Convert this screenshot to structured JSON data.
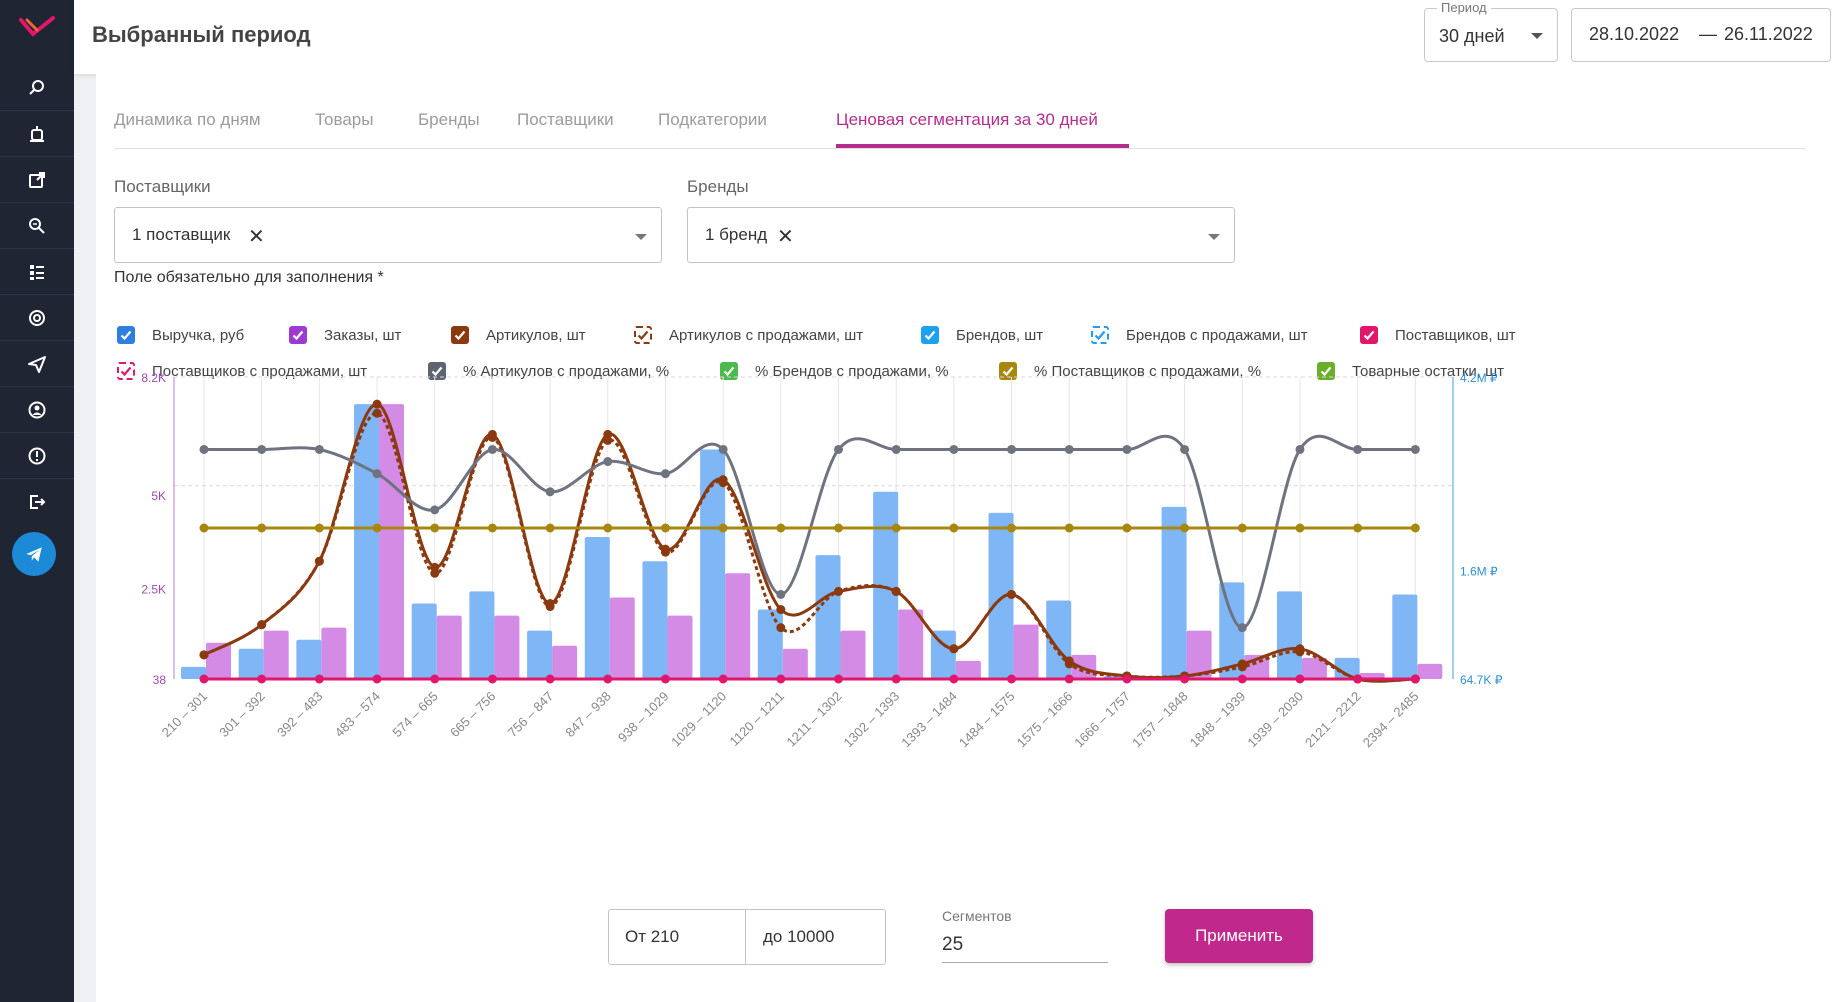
{
  "header": {
    "title": "Выбранный период",
    "period_label": "Период",
    "period_value": "30 дней",
    "date_from": "28.10.2022",
    "date_sep": "—",
    "date_to": "26.11.2022"
  },
  "sidebar": {
    "icons": [
      "logo-icon",
      "search-list-icon",
      "alarm-icon",
      "external-link-icon",
      "zoom-icon",
      "list-icon",
      "chrome-icon",
      "send-icon",
      "account-icon",
      "info-icon",
      "logout-icon",
      "telegram-icon"
    ]
  },
  "tabs": [
    {
      "label": "Динамика по дням",
      "active": false
    },
    {
      "label": "Товары",
      "active": false
    },
    {
      "label": "Бренды",
      "active": false
    },
    {
      "label": "Поставщики",
      "active": false
    },
    {
      "label": "Подкатегории",
      "active": false
    },
    {
      "label": "Ценовая сегментация за 30 дней",
      "active": true
    }
  ],
  "filters": {
    "suppliers_label": "Поставщики",
    "suppliers_value": "1 поставщик",
    "brands_label": "Бренды",
    "brands_value": "1 бренд",
    "required_note": "Поле обязательно для заполнения *",
    "clear_symbol": "✕"
  },
  "legend": [
    {
      "label": "Выручка, руб",
      "color": "#2f7fe0",
      "style": "solid",
      "checked": true
    },
    {
      "label": "Заказы, шт",
      "color": "#9b3bd1",
      "style": "solid",
      "checked": true
    },
    {
      "label": "Артикулов, шт",
      "color": "#8b3a10",
      "style": "solid",
      "checked": true
    },
    {
      "label": "Артикулов с продажами, шт",
      "color": "#8b3a10",
      "style": "dashed",
      "checked": true
    },
    {
      "label": "Брендов, шт",
      "color": "#1ea0f0",
      "style": "solid",
      "checked": true
    },
    {
      "label": "Брендов с продажами, шт",
      "color": "#1ea0f0",
      "style": "dashed",
      "checked": true
    },
    {
      "label": "Поставщиков, шт",
      "color": "#e0176b",
      "style": "solid",
      "checked": true
    },
    {
      "label": "Поставщиков с продажами, шт",
      "color": "#e0176b",
      "style": "dashed",
      "checked": true
    },
    {
      "label": "% Артикулов с продажами, %",
      "color": "#5e6470",
      "style": "solid",
      "checked": true
    },
    {
      "label": "% Брендов с продажами, %",
      "color": "#4cbb4c",
      "style": "solid",
      "checked": true
    },
    {
      "label": "% Поставщиков с продажами, %",
      "color": "#a8870f",
      "style": "solid",
      "checked": true
    },
    {
      "label": "Товарные остатки, шт",
      "color": "#6aaf2a",
      "style": "solid",
      "checked": true
    }
  ],
  "chart_data": {
    "type": "bar",
    "categories": [
      "210 – 301",
      "301 – 392",
      "392 – 483",
      "483 – 574",
      "574 – 665",
      "665 – 756",
      "756 – 847",
      "847 – 938",
      "938 – 1029",
      "1029 – 1120",
      "1120 – 1211",
      "1211 – 1302",
      "1302 – 1393",
      "1393 – 1484",
      "1484 – 1575",
      "1575 – 1666",
      "1666 – 1757",
      "1757 – 1848",
      "1848 – 1939",
      "1939 – 2030",
      "2121 – 2212",
      "2394 – 2485"
    ],
    "left_ticks": [
      "8.2K",
      "5K",
      "2.5K",
      "38"
    ],
    "right_ticks": [
      "4.2M ₽",
      "1.6M ₽",
      "64.7K ₽"
    ],
    "left_ylim": [
      38,
      8200
    ],
    "series": [
      {
        "name": "Выручка, руб",
        "kind": "bar",
        "color": "#7fb6f5",
        "values": [
          0.04,
          0.1,
          0.13,
          0.91,
          0.25,
          0.29,
          0.16,
          0.47,
          0.39,
          0.76,
          0.23,
          0.41,
          0.62,
          0.16,
          0.55,
          0.26,
          0.01,
          0.57,
          0.32,
          0.29,
          0.07,
          0.28
        ]
      },
      {
        "name": "Заказы, шт",
        "kind": "bar",
        "color": "#d48be6",
        "values": [
          0.12,
          0.16,
          0.17,
          0.91,
          0.21,
          0.21,
          0.11,
          0.27,
          0.21,
          0.35,
          0.1,
          0.16,
          0.23,
          0.06,
          0.18,
          0.08,
          0.01,
          0.16,
          0.08,
          0.07,
          0.02,
          0.05
        ]
      },
      {
        "name": "Артикулов, шт",
        "kind": "line",
        "color": "#8b3a10",
        "values": [
          0.08,
          0.18,
          0.39,
          0.91,
          0.37,
          0.81,
          0.25,
          0.81,
          0.43,
          0.66,
          0.23,
          0.29,
          0.29,
          0.1,
          0.28,
          0.06,
          0.01,
          0.01,
          0.05,
          0.1,
          0.0,
          0.0
        ]
      },
      {
        "name": "Артикулов с продажами, шт",
        "kind": "line-dashed",
        "color": "#8b3a10",
        "values": [
          0.08,
          0.18,
          0.39,
          0.88,
          0.35,
          0.8,
          0.24,
          0.79,
          0.42,
          0.65,
          0.17,
          0.29,
          0.29,
          0.1,
          0.28,
          0.05,
          0.01,
          0.01,
          0.04,
          0.09,
          0.0,
          0.0
        ]
      },
      {
        "name": "% Артикулов с продажами, %",
        "kind": "line",
        "color": "#6f7380",
        "values": [
          0.76,
          0.76,
          0.76,
          0.68,
          0.56,
          0.76,
          0.62,
          0.72,
          0.68,
          0.76,
          0.28,
          0.76,
          0.76,
          0.76,
          0.76,
          0.76,
          0.76,
          0.76,
          0.17,
          0.76,
          0.76,
          0.76
        ]
      },
      {
        "name": "% Поставщиков с продажами, %",
        "kind": "line",
        "color": "#a8870f",
        "values": [
          0.5,
          0.5,
          0.5,
          0.5,
          0.5,
          0.5,
          0.5,
          0.5,
          0.5,
          0.5,
          0.5,
          0.5,
          0.5,
          0.5,
          0.5,
          0.5,
          0.5,
          0.5,
          0.5,
          0.5,
          0.5,
          0.5
        ]
      },
      {
        "name": "Поставщиков, шт",
        "kind": "line",
        "color": "#e0176b",
        "values": [
          0,
          0,
          0,
          0,
          0,
          0,
          0,
          0,
          0,
          0,
          0,
          0,
          0,
          0,
          0,
          0,
          0,
          0,
          0,
          0,
          0,
          0
        ]
      }
    ]
  },
  "controls": {
    "from_label": "От 210",
    "to_label": "до 10000",
    "segments_label": "Сегментов",
    "segments_value": "25",
    "apply_label": "Применить"
  }
}
